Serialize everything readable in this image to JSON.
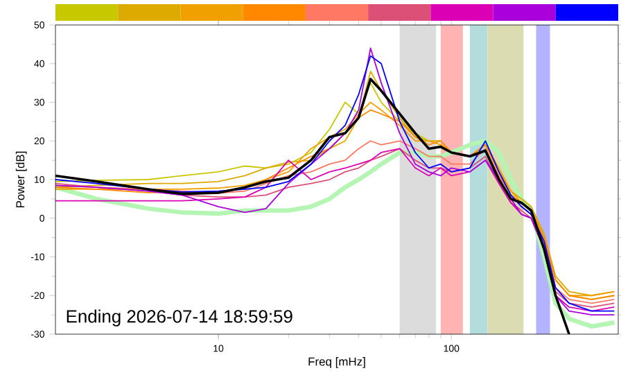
{
  "chart_data": {
    "type": "line",
    "xlabel": "Freq [mHz]",
    "ylabel": "Power [dB]",
    "log": "x",
    "xlim": [
      2,
      520
    ],
    "ylim": [
      -30,
      50
    ],
    "xticks": [
      10,
      100
    ],
    "yticks": [
      -30,
      -20,
      -10,
      0,
      10,
      20,
      30,
      40,
      50
    ],
    "x": [
      2,
      3,
      5,
      7,
      10,
      13,
      16,
      20,
      25,
      30,
      35,
      40,
      45,
      50,
      60,
      70,
      80,
      90,
      100,
      120,
      140,
      160,
      180,
      200,
      220,
      250,
      280,
      320,
      400,
      500
    ],
    "series": [
      {
        "color": "#b4f5b4",
        "values": [
          8,
          5,
          2.5,
          1.5,
          1.2,
          2,
          2,
          2,
          3,
          5,
          8,
          10,
          12,
          14,
          17,
          17,
          16,
          16,
          17,
          19,
          20,
          17,
          10,
          5,
          2,
          -10,
          -22,
          -26,
          -28,
          -27
        ]
      },
      {
        "color": "#c8c800",
        "values": [
          9.5,
          9.8,
          10,
          11,
          12,
          13.5,
          13,
          14,
          17,
          23,
          30,
          27,
          35,
          30,
          25,
          22,
          20,
          19,
          17,
          16,
          19,
          12,
          7,
          5,
          3,
          -5,
          -16,
          -20,
          -21,
          -20
        ]
      },
      {
        "color": "#dcaa00",
        "values": [
          8,
          8.5,
          9,
          9,
          9.5,
          11,
          13,
          14.5,
          15,
          18,
          20,
          26,
          38,
          33,
          26,
          21,
          20,
          20,
          17,
          16,
          19,
          13,
          7,
          5,
          3,
          -4,
          -15,
          -19,
          -20,
          -19
        ]
      },
      {
        "color": "#f0a000",
        "values": [
          7.5,
          7.5,
          7.5,
          7.5,
          7.8,
          8.5,
          10,
          12,
          18,
          21,
          23,
          27,
          30,
          28,
          24,
          20,
          20,
          19,
          17,
          16,
          19,
          12,
          7,
          4,
          2,
          -5,
          -16,
          -20,
          -20,
          -19
        ]
      },
      {
        "color": "#ff8800",
        "values": [
          8,
          7.5,
          6.6,
          6.8,
          6.6,
          8,
          10,
          13,
          16,
          18,
          22,
          26,
          28,
          27,
          25,
          21,
          19,
          20,
          17,
          16,
          19,
          12,
          6,
          4,
          2,
          -5,
          -16,
          -20,
          -21,
          -20
        ]
      },
      {
        "color": "#ff7864",
        "values": [
          8.5,
          8,
          7.5,
          7,
          6.5,
          7,
          9,
          11,
          12,
          14,
          15,
          18,
          20,
          19,
          20,
          18,
          16,
          16,
          14,
          14,
          18,
          11,
          6,
          3,
          1,
          -6,
          -18,
          -21,
          -22,
          -21
        ]
      },
      {
        "color": "#dc5078",
        "values": [
          9,
          8,
          7,
          6,
          5.5,
          5.5,
          6,
          8,
          9,
          10,
          12,
          13,
          15,
          16,
          18,
          15,
          13,
          13,
          12,
          13,
          16,
          9,
          4,
          2,
          0,
          -7,
          -19,
          -22,
          -23,
          -22
        ]
      },
      {
        "color": "#dc00b4",
        "values": [
          4.5,
          4.5,
          4.5,
          4.5,
          5,
          5.5,
          8,
          15,
          10,
          12,
          13,
          14,
          15,
          17,
          18,
          13,
          11,
          13,
          11,
          12,
          15,
          9,
          4,
          1,
          0,
          -8,
          -20,
          -23,
          -24,
          -23
        ]
      },
      {
        "color": "#aa00dc",
        "values": [
          8.5,
          8,
          7,
          6,
          3,
          1.5,
          2.5,
          9,
          14,
          18,
          22,
          28,
          44,
          35,
          22,
          14,
          12,
          11,
          13,
          12,
          15,
          10,
          5,
          1,
          0,
          -8,
          -20,
          -24,
          -25,
          -25
        ]
      },
      {
        "color": "#0000ff",
        "values": [
          10,
          9,
          7.5,
          6.8,
          7,
          7.5,
          8,
          9.5,
          14,
          20,
          24,
          32,
          42,
          40,
          25,
          17,
          13,
          14,
          12,
          13,
          20,
          12,
          6,
          3,
          1,
          -6,
          -18,
          -22,
          -24,
          -24
        ]
      },
      {
        "color": "#000000",
        "values": [
          11,
          9.5,
          7.5,
          6.3,
          6.6,
          8,
          9.5,
          10.5,
          15,
          21,
          22,
          26,
          36,
          33,
          27,
          22,
          18,
          18.5,
          17,
          16,
          17.5,
          10,
          5,
          4,
          2,
          -8,
          -20,
          -30,
          null,
          null
        ]
      }
    ],
    "bands": [
      {
        "axis": "x",
        "from": 60,
        "to": 86,
        "color": "#dcdcdc"
      },
      {
        "axis": "x",
        "from": 90,
        "to": 112,
        "color": "#ffb3b3"
      },
      {
        "axis": "x",
        "from": 120,
        "to": 143,
        "color": "#b3dcdc"
      },
      {
        "axis": "x",
        "from": 143,
        "to": 204,
        "color": "#dcdcb3"
      },
      {
        "axis": "x",
        "from": 231,
        "to": 265,
        "color": "#b3b3ff"
      }
    ],
    "annotations": [
      "Ending 2026-07-14 18:59:59"
    ]
  }
}
